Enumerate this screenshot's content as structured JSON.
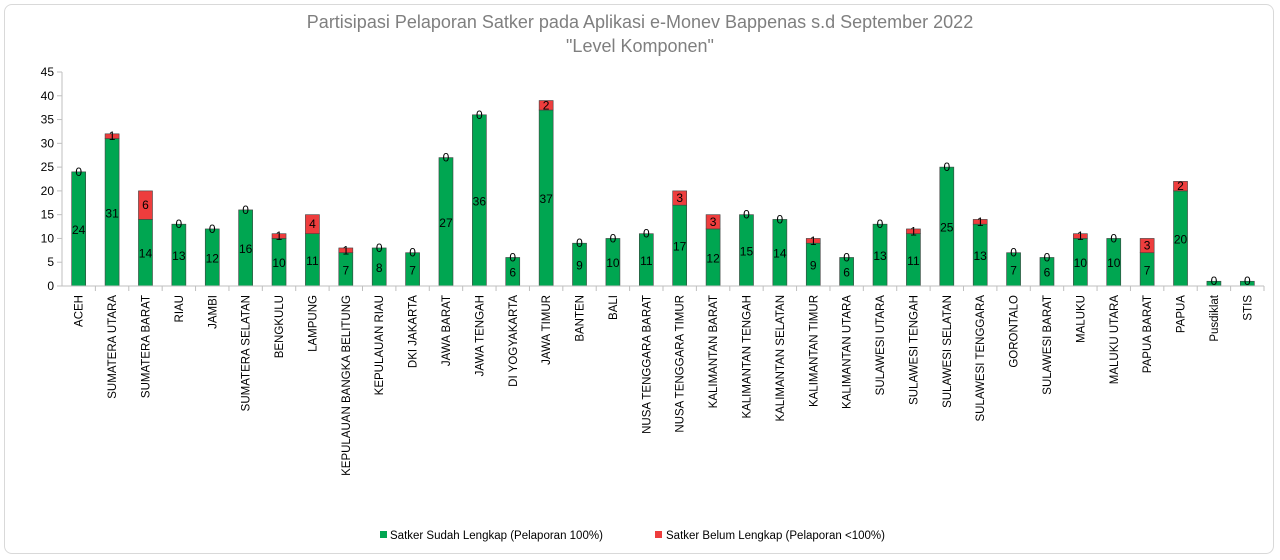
{
  "chart_data": {
    "type": "bar",
    "stacked": true,
    "title": "Partisipasi Pelaporan Satker pada Aplikasi e-Monev  Bappenas s.d September 2022",
    "subtitle": "\"Level Komponen\"",
    "xlabel": "",
    "ylabel": "",
    "ylim": [
      0,
      45
    ],
    "yticks": [
      0,
      5,
      10,
      15,
      20,
      25,
      30,
      35,
      40,
      45
    ],
    "grid": false,
    "legend_position": "bottom",
    "categories": [
      "ACEH",
      "SUMATERA UTARA",
      "SUMATERA BARAT",
      "RIAU",
      "JAMBI",
      "SUMATERA SELATAN",
      "BENGKULU",
      "LAMPUNG",
      "KEPULAUAN BANGKA BELITUNG",
      "KEPULAUAN RIAU",
      "DKI JAKARTA",
      "JAWA BARAT",
      "JAWA TENGAH",
      "DI YOGYAKARTA",
      "JAWA TIMUR",
      "BANTEN",
      "BALI",
      "NUSA TENGGARA BARAT",
      "NUSA TENGGARA TIMUR",
      "KALIMANTAN BARAT",
      "KALIMANTAN TENGAH",
      "KALIMANTAN SELATAN",
      "KALIMANTAN TIMUR",
      "KALIMANTAN UTARA",
      "SULAWESI UTARA",
      "SULAWESI TENGAH",
      "SULAWESI SELATAN",
      "SULAWESI TENGGARA",
      "GORONTALO",
      "SULAWESI BARAT",
      "MALUKU",
      "MALUKU UTARA",
      "PAPUA BARAT",
      "PAPUA",
      "Pusdiklat",
      "STIS"
    ],
    "series": [
      {
        "name": "Satker Sudah Lengkap (Pelaporan 100%)",
        "color": "#00a651",
        "values": [
          24,
          31,
          14,
          13,
          12,
          16,
          10,
          11,
          7,
          8,
          7,
          27,
          36,
          6,
          37,
          9,
          10,
          11,
          17,
          12,
          15,
          14,
          9,
          6,
          13,
          11,
          25,
          13,
          7,
          6,
          10,
          10,
          7,
          20,
          1,
          1
        ],
        "labels": [
          "24",
          "31",
          "14",
          "13",
          "12",
          "16",
          "10",
          "11",
          "7",
          "8",
          "7",
          "27",
          "36",
          "6",
          "37",
          "9",
          "10",
          "11",
          "17",
          "12",
          "15",
          "14",
          "9",
          "6",
          "13",
          "11",
          "25",
          "13",
          "7",
          "6",
          "10",
          "10",
          "7",
          "20",
          "",
          ""
        ]
      },
      {
        "name": "Satker Belum Lengkap (Pelaporan <100%)",
        "color": "#ee3d3d",
        "values": [
          0,
          1,
          6,
          0,
          0,
          0,
          1,
          4,
          1,
          0,
          0,
          0,
          0,
          0,
          2,
          0,
          0,
          0,
          3,
          3,
          0,
          0,
          1,
          0,
          0,
          1,
          0,
          1,
          0,
          0,
          1,
          0,
          3,
          2,
          0,
          0
        ],
        "labels": [
          "0",
          "1",
          "6",
          "0",
          "0",
          "0",
          "1",
          "4",
          "1",
          "0",
          "0",
          "0",
          "0",
          "0",
          "2",
          "0",
          "0",
          "0",
          "3",
          "3",
          "0",
          "0",
          "1",
          "0",
          "0",
          "1",
          "0",
          "1",
          "0",
          "0",
          "1",
          "0",
          "3",
          "2",
          "0",
          "0"
        ]
      }
    ]
  }
}
